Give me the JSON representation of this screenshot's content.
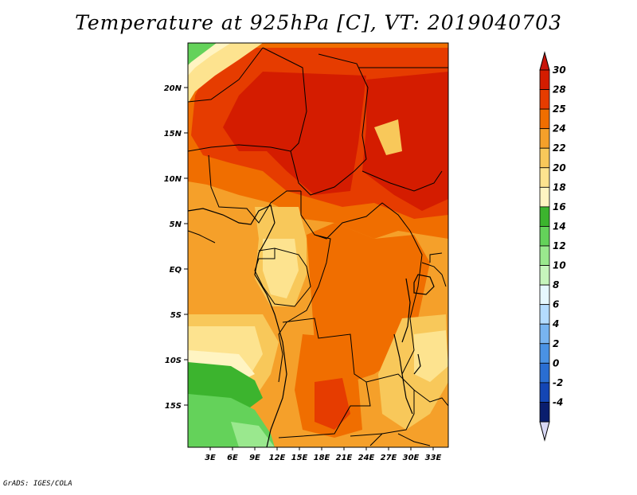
{
  "title": "Temperature at 925hPa [C], VT: 2019040703",
  "credit": "GrADS: IGES/COLA",
  "map": {
    "lon_labels": [
      "3E",
      "6E",
      "9E",
      "12E",
      "15E",
      "18E",
      "21E",
      "24E",
      "27E",
      "30E",
      "33E"
    ],
    "lat_labels": [
      "20N",
      "15N",
      "10N",
      "5N",
      "EQ",
      "5S",
      "10S",
      "15S"
    ]
  },
  "colorbar": {
    "levels": [
      "30",
      "28",
      "25",
      "24",
      "22",
      "20",
      "18",
      "16",
      "14",
      "12",
      "10",
      "8",
      "6",
      "4",
      "2",
      "0",
      "-2",
      "-4"
    ],
    "colors": [
      "#d41c00",
      "#e63c00",
      "#f06e00",
      "#f5a02a",
      "#f8c85a",
      "#fde38f",
      "#fff4c2",
      "#3cb42e",
      "#64d25a",
      "#9ae88e",
      "#c6f5bc",
      "#e6f8ff",
      "#b4dcff",
      "#78b4f0",
      "#4a92e4",
      "#2a6ed2",
      "#1446b4",
      "#0a1e6e"
    ],
    "top_arrow_color": "#c8140a",
    "bottom_arrow_color": "#d8d8f5"
  }
}
